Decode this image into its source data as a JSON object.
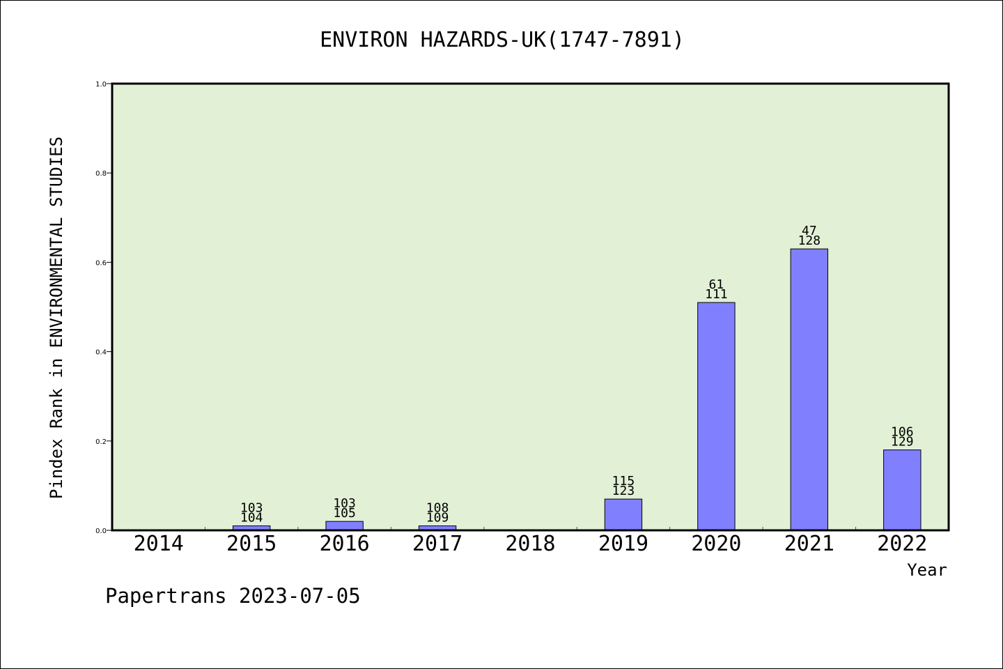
{
  "chart_data": {
    "type": "bar",
    "title": "ENVIRON HAZARDS-UK(1747-7891)",
    "xlabel": "Year",
    "ylabel": "Pindex Rank in ENVIRONMENTAL STUDIES",
    "categories": [
      "2014",
      "2015",
      "2016",
      "2017",
      "2018",
      "2019",
      "2020",
      "2021",
      "2022"
    ],
    "values": [
      null,
      0.01,
      0.02,
      0.01,
      null,
      0.07,
      0.51,
      0.63,
      0.18
    ],
    "labels_top": [
      "",
      "103",
      "103",
      "108",
      "",
      "115",
      "61",
      "47",
      "106"
    ],
    "labels_bottom": [
      "",
      "104",
      "105",
      "109",
      "",
      "123",
      "111",
      "128",
      "129"
    ],
    "ylim": [
      0.0,
      1.0
    ],
    "yticks": [
      "0.0",
      "0.2",
      "0.4",
      "0.6",
      "0.8",
      "1.0"
    ],
    "grid": false,
    "colors": {
      "plot_background": "#e2f0d6",
      "bar_fill": "#8080ff",
      "bar_stroke": "#000000"
    }
  },
  "footer": {
    "text": "Papertrans 2023-07-05"
  }
}
